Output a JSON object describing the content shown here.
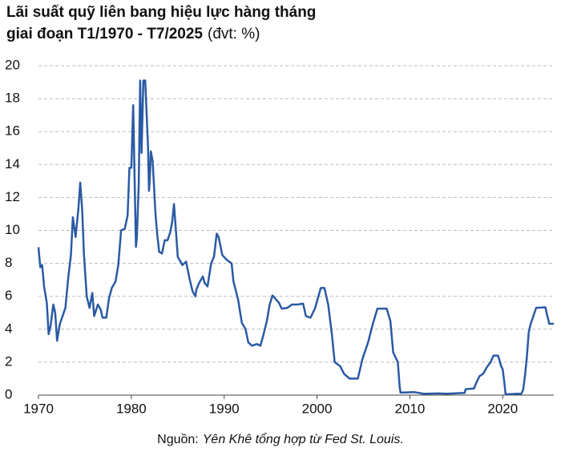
{
  "chart_data": {
    "type": "line",
    "title_lines": [
      "Lãi suất quỹ liên bang hiệu lực hàng tháng",
      "giai đoạn T1/1970 - T7/2025"
    ],
    "unit": "(đvt: %)",
    "source_label": "Nguồn:",
    "source": "Yên Khê tổng hợp từ Fed St. Louis.",
    "xlim": [
      1970,
      2025.5
    ],
    "xticks": [
      1970,
      1980,
      1990,
      2000,
      2010,
      2020
    ],
    "ylim": [
      0,
      20
    ],
    "yticks": [
      0,
      2,
      4,
      6,
      8,
      10,
      12,
      14,
      16,
      18,
      20
    ],
    "grid": true,
    "series": [
      {
        "color": "#2a5aa4",
        "x": [
          1970.0,
          1970.2,
          1970.4,
          1970.6,
          1970.9,
          1971.1,
          1971.3,
          1971.6,
          1971.8,
          1972.0,
          1972.3,
          1972.6,
          1972.9,
          1973.2,
          1973.5,
          1973.7,
          1973.9,
          1974.0,
          1974.3,
          1974.5,
          1974.7,
          1974.9,
          1975.2,
          1975.5,
          1975.8,
          1976.0,
          1976.4,
          1976.7,
          1976.9,
          1977.3,
          1977.6,
          1977.9,
          1978.3,
          1978.6,
          1978.9,
          1979.3,
          1979.6,
          1979.8,
          1980.0,
          1980.2,
          1980.5,
          1980.6,
          1980.8,
          1980.95,
          1981.1,
          1981.3,
          1981.5,
          1981.8,
          1981.9,
          1982.0,
          1982.1,
          1982.3,
          1982.6,
          1982.8,
          1983.0,
          1983.3,
          1983.6,
          1983.9,
          1984.2,
          1984.4,
          1984.6,
          1984.8,
          1985.0,
          1985.5,
          1985.9,
          1986.3,
          1986.6,
          1986.9,
          1987.0,
          1987.3,
          1987.7,
          1987.9,
          1988.2,
          1988.6,
          1988.9,
          1989.2,
          1989.4,
          1989.8,
          1990.3,
          1990.8,
          1991.0,
          1991.5,
          1991.9,
          1992.3,
          1992.6,
          1993.0,
          1993.5,
          1993.9,
          1994.2,
          1994.6,
          1994.9,
          1995.2,
          1995.6,
          1995.9,
          1996.2,
          1996.8,
          1997.3,
          1997.9,
          1998.5,
          1998.8,
          1999.3,
          1999.8,
          2000.4,
          2000.8,
          2001.2,
          2001.6,
          2001.9,
          2002.5,
          2002.9,
          2003.5,
          2004.4,
          2004.9,
          2005.5,
          2006.0,
          2006.5,
          2007.5,
          2007.9,
          2008.2,
          2008.7,
          2008.9,
          2009.0,
          2010.5,
          2011.5,
          2013.0,
          2014.0,
          2015.9,
          2016.0,
          2016.9,
          2017.2,
          2017.5,
          2017.9,
          2018.3,
          2018.7,
          2019.0,
          2019.5,
          2019.8,
          2020.0,
          2020.2,
          2020.3,
          2021.5,
          2022.0,
          2022.2,
          2022.4,
          2022.6,
          2022.8,
          2023.0,
          2023.3,
          2023.6,
          2024.6,
          2024.8,
          2024.95,
          2025.0,
          2025.5
        ],
        "values": [
          8.98,
          7.76,
          7.9,
          6.6,
          5.6,
          3.7,
          4.2,
          5.5,
          5.0,
          3.3,
          4.3,
          4.8,
          5.3,
          7.1,
          8.5,
          10.8,
          10.0,
          9.6,
          11.3,
          12.9,
          11.3,
          8.5,
          6.0,
          5.3,
          6.2,
          4.8,
          5.5,
          5.2,
          4.7,
          4.7,
          5.9,
          6.5,
          6.9,
          7.9,
          10.0,
          10.1,
          10.9,
          13.8,
          13.8,
          17.6,
          9.0,
          9.6,
          12.8,
          19.1,
          14.7,
          19.1,
          19.1,
          15.1,
          12.4,
          13.2,
          14.8,
          14.2,
          11.0,
          9.7,
          8.7,
          8.6,
          9.4,
          9.4,
          9.9,
          10.5,
          11.6,
          10.0,
          8.4,
          7.9,
          8.1,
          7.0,
          6.3,
          6.0,
          6.4,
          6.8,
          7.2,
          6.8,
          6.6,
          8.0,
          8.4,
          9.8,
          9.6,
          8.5,
          8.2,
          8.0,
          6.9,
          5.8,
          4.4,
          4.0,
          3.2,
          3.0,
          3.1,
          3.0,
          3.6,
          4.5,
          5.5,
          6.05,
          5.8,
          5.6,
          5.25,
          5.3,
          5.5,
          5.5,
          5.55,
          4.8,
          4.7,
          5.3,
          6.5,
          6.5,
          5.5,
          3.7,
          2.0,
          1.75,
          1.3,
          1.0,
          1.0,
          2.2,
          3.2,
          4.3,
          5.25,
          5.25,
          4.5,
          2.6,
          2.0,
          0.5,
          0.15,
          0.18,
          0.08,
          0.1,
          0.09,
          0.13,
          0.36,
          0.4,
          0.8,
          1.15,
          1.3,
          1.7,
          2.0,
          2.4,
          2.4,
          1.8,
          1.55,
          0.65,
          0.05,
          0.08,
          0.08,
          0.33,
          1.2,
          2.3,
          3.8,
          4.3,
          4.8,
          5.3,
          5.33,
          4.8,
          4.5,
          4.33,
          4.33
        ]
      }
    ]
  }
}
